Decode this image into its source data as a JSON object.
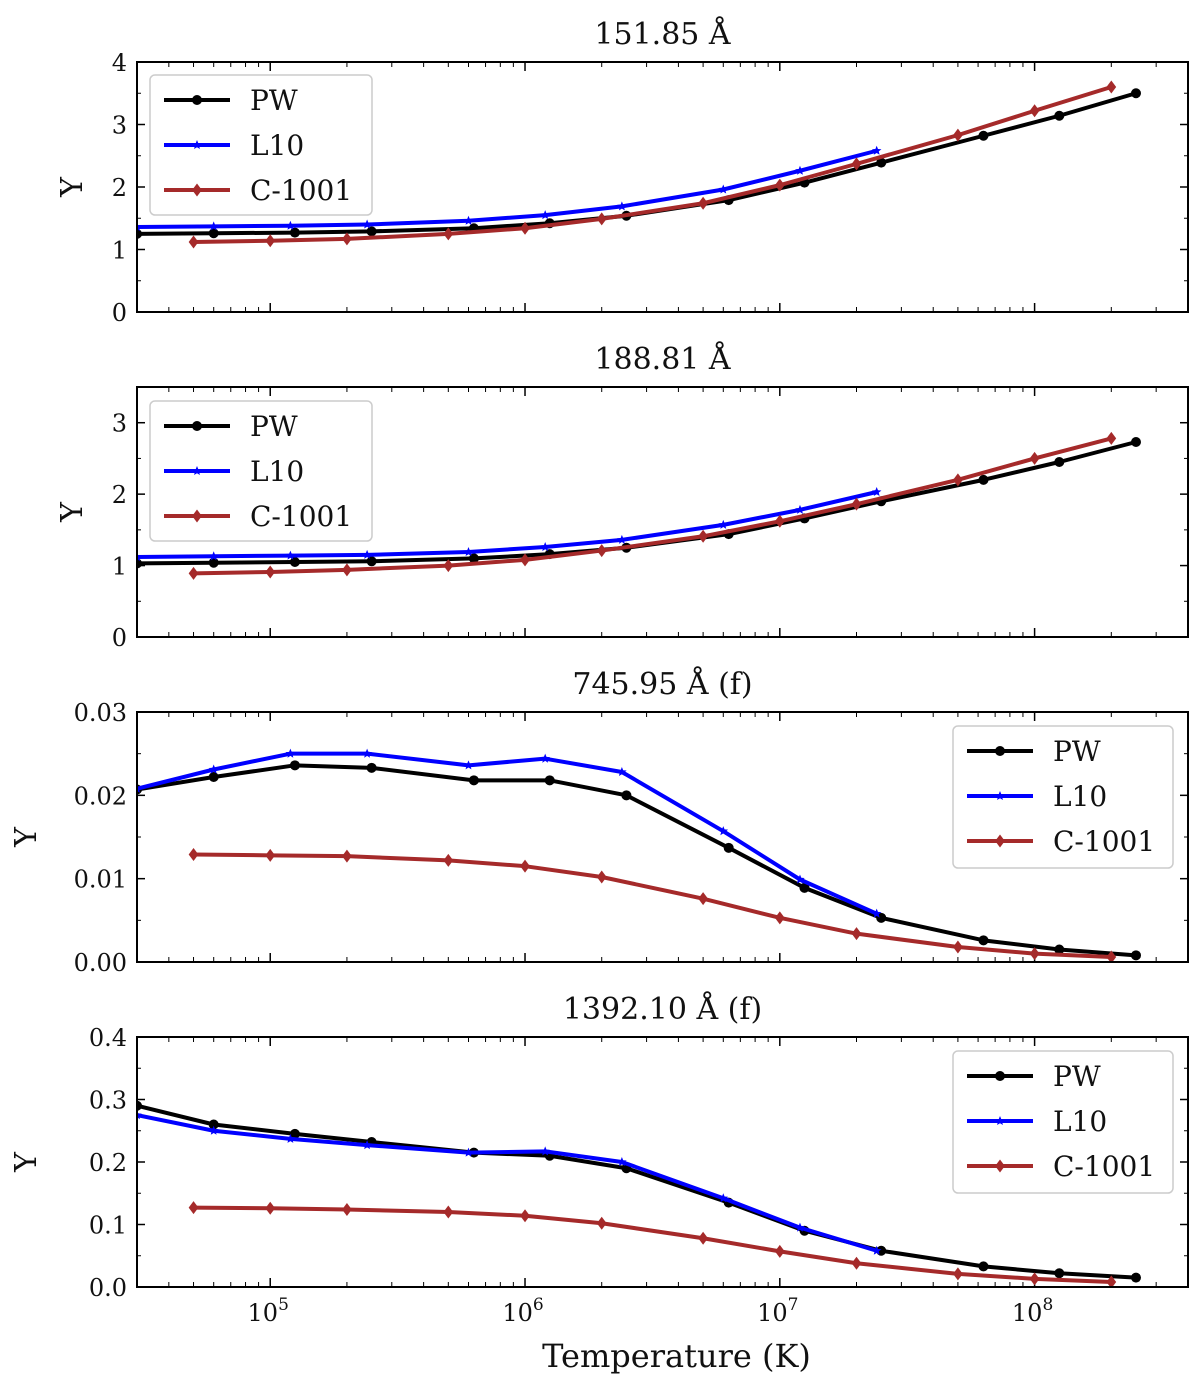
{
  "figure": {
    "xlabel": "Temperature (K)"
  },
  "chart_data": [
    {
      "type": "line",
      "title": "151.85 Å",
      "ylabel": "Y",
      "ylim": [
        0,
        4
      ],
      "yticks": [
        0,
        1,
        2,
        3,
        4
      ],
      "xlabel": "Temperature (K)",
      "xscale": "log",
      "xlim": [
        30000,
        400000000
      ],
      "xticks": [
        {
          "value": 100000,
          "label": "10",
          "exp": "5"
        },
        {
          "value": 1000000,
          "label": "10",
          "exp": "6"
        },
        {
          "value": 10000000,
          "label": "10",
          "exp": "7"
        },
        {
          "value": 100000000,
          "label": "10",
          "exp": "8"
        }
      ],
      "legend_position": "top-left",
      "series": [
        {
          "name": "PW",
          "color": "#000000",
          "marker": "circle",
          "x": [
            30000,
            60000,
            125000,
            250000,
            630000,
            1250000,
            2500000,
            6300000,
            12500000,
            25000000,
            63000000,
            125000000,
            250000000
          ],
          "y": [
            1.25,
            1.26,
            1.27,
            1.29,
            1.34,
            1.42,
            1.54,
            1.79,
            2.07,
            2.39,
            2.82,
            3.14,
            3.5
          ]
        },
        {
          "name": "L10",
          "color": "#0000ff",
          "marker": "star",
          "x": [
            30000,
            60000,
            120000,
            240000,
            600000,
            1200000,
            2400000,
            6000000,
            12000000,
            24000000
          ],
          "y": [
            1.36,
            1.37,
            1.38,
            1.4,
            1.46,
            1.55,
            1.69,
            1.96,
            2.26,
            2.58
          ]
        },
        {
          "name": "C-1001",
          "color": "#a52a2a",
          "marker": "diamond",
          "x": [
            50000,
            100000,
            200000,
            500000,
            1000000,
            2000000,
            5000000,
            10000000,
            20000000,
            50000000,
            100000000,
            200000000
          ],
          "y": [
            1.12,
            1.14,
            1.17,
            1.25,
            1.34,
            1.49,
            1.74,
            2.03,
            2.37,
            2.83,
            3.22,
            3.6
          ]
        }
      ]
    },
    {
      "type": "line",
      "title": "188.81 Å",
      "ylabel": "Y",
      "ylim": [
        0,
        3.5
      ],
      "yticks": [
        0,
        1,
        2,
        3
      ],
      "xlabel": "Temperature (K)",
      "xscale": "log",
      "xlim": [
        30000,
        400000000
      ],
      "xticks": [
        {
          "value": 100000,
          "label": "10",
          "exp": "5"
        },
        {
          "value": 1000000,
          "label": "10",
          "exp": "6"
        },
        {
          "value": 10000000,
          "label": "10",
          "exp": "7"
        },
        {
          "value": 100000000,
          "label": "10",
          "exp": "8"
        }
      ],
      "legend_position": "top-left",
      "series": [
        {
          "name": "PW",
          "color": "#000000",
          "marker": "circle",
          "x": [
            30000,
            60000,
            125000,
            250000,
            630000,
            1250000,
            2500000,
            6300000,
            12500000,
            25000000,
            63000000,
            125000000,
            250000000
          ],
          "y": [
            1.03,
            1.04,
            1.05,
            1.06,
            1.1,
            1.16,
            1.25,
            1.44,
            1.66,
            1.9,
            2.2,
            2.45,
            2.73
          ]
        },
        {
          "name": "L10",
          "color": "#0000ff",
          "marker": "star",
          "x": [
            30000,
            60000,
            120000,
            240000,
            600000,
            1200000,
            2400000,
            6000000,
            12000000,
            24000000
          ],
          "y": [
            1.12,
            1.13,
            1.14,
            1.15,
            1.19,
            1.26,
            1.36,
            1.57,
            1.78,
            2.03
          ]
        },
        {
          "name": "C-1001",
          "color": "#a52a2a",
          "marker": "diamond",
          "x": [
            50000,
            100000,
            200000,
            500000,
            1000000,
            2000000,
            5000000,
            10000000,
            20000000,
            50000000,
            100000000,
            200000000
          ],
          "y": [
            0.89,
            0.91,
            0.94,
            1.0,
            1.08,
            1.21,
            1.41,
            1.62,
            1.86,
            2.2,
            2.5,
            2.78
          ]
        }
      ]
    },
    {
      "type": "line",
      "title": "745.95 Å (f)",
      "ylabel": "Y",
      "ylim": [
        0,
        0.03
      ],
      "yticks": [
        0,
        0.01,
        0.02,
        0.03
      ],
      "ytick_labels": [
        "0.00",
        "0.01",
        "0.02",
        "0.03"
      ],
      "xlabel": "Temperature (K)",
      "xscale": "log",
      "xlim": [
        30000,
        400000000
      ],
      "xticks": [
        {
          "value": 100000,
          "label": "10",
          "exp": "5"
        },
        {
          "value": 1000000,
          "label": "10",
          "exp": "6"
        },
        {
          "value": 10000000,
          "label": "10",
          "exp": "7"
        },
        {
          "value": 100000000,
          "label": "10",
          "exp": "8"
        }
      ],
      "legend_position": "right",
      "series": [
        {
          "name": "PW",
          "color": "#000000",
          "marker": "circle",
          "x": [
            30000,
            60000,
            125000,
            250000,
            630000,
            1250000,
            2500000,
            6300000,
            12500000,
            25000000,
            63000000,
            125000000,
            250000000
          ],
          "y": [
            0.0207,
            0.0222,
            0.0236,
            0.0233,
            0.0218,
            0.0218,
            0.02,
            0.0137,
            0.0089,
            0.0053,
            0.0026,
            0.0015,
            0.0008
          ]
        },
        {
          "name": "L10",
          "color": "#0000ff",
          "marker": "star",
          "x": [
            30000,
            60000,
            120000,
            240000,
            600000,
            1200000,
            2400000,
            6000000,
            12000000,
            24000000
          ],
          "y": [
            0.0208,
            0.0231,
            0.025,
            0.025,
            0.0236,
            0.0244,
            0.0228,
            0.0157,
            0.0099,
            0.0058
          ]
        },
        {
          "name": "C-1001",
          "color": "#a52a2a",
          "marker": "diamond",
          "x": [
            50000,
            100000,
            200000,
            500000,
            1000000,
            2000000,
            5000000,
            10000000,
            20000000,
            50000000,
            100000000,
            200000000
          ],
          "y": [
            0.0129,
            0.0128,
            0.0127,
            0.0122,
            0.0115,
            0.0102,
            0.0076,
            0.0053,
            0.0034,
            0.0018,
            0.001,
            0.0006
          ]
        }
      ]
    },
    {
      "type": "line",
      "title": "1392.10 Å (f)",
      "ylabel": "Y",
      "ylim": [
        0,
        0.4
      ],
      "yticks": [
        0,
        0.1,
        0.2,
        0.3,
        0.4
      ],
      "ytick_labels": [
        "0.0",
        "0.1",
        "0.2",
        "0.3",
        "0.4"
      ],
      "xlabel": "Temperature (K)",
      "xscale": "log",
      "xlim": [
        30000,
        400000000
      ],
      "xticks": [
        {
          "value": 100000,
          "label": "10",
          "exp": "5"
        },
        {
          "value": 1000000,
          "label": "10",
          "exp": "6"
        },
        {
          "value": 10000000,
          "label": "10",
          "exp": "7"
        },
        {
          "value": 100000000,
          "label": "10",
          "exp": "8"
        }
      ],
      "legend_position": "right",
      "series": [
        {
          "name": "PW",
          "color": "#000000",
          "marker": "circle",
          "x": [
            30000,
            60000,
            125000,
            250000,
            630000,
            1250000,
            2500000,
            6300000,
            12500000,
            25000000,
            63000000,
            125000000,
            250000000
          ],
          "y": [
            0.29,
            0.26,
            0.245,
            0.232,
            0.215,
            0.21,
            0.19,
            0.135,
            0.09,
            0.058,
            0.033,
            0.022,
            0.015
          ]
        },
        {
          "name": "L10",
          "color": "#0000ff",
          "marker": "star",
          "x": [
            30000,
            60000,
            120000,
            240000,
            600000,
            1200000,
            2400000,
            6000000,
            12000000,
            24000000
          ],
          "y": [
            0.275,
            0.25,
            0.237,
            0.227,
            0.215,
            0.217,
            0.2,
            0.142,
            0.095,
            0.058
          ]
        },
        {
          "name": "C-1001",
          "color": "#a52a2a",
          "marker": "diamond",
          "x": [
            50000,
            100000,
            200000,
            500000,
            1000000,
            2000000,
            5000000,
            10000000,
            20000000,
            50000000,
            100000000,
            200000000
          ],
          "y": [
            0.127,
            0.126,
            0.124,
            0.12,
            0.114,
            0.102,
            0.078,
            0.057,
            0.038,
            0.021,
            0.013,
            0.008
          ]
        }
      ]
    }
  ]
}
